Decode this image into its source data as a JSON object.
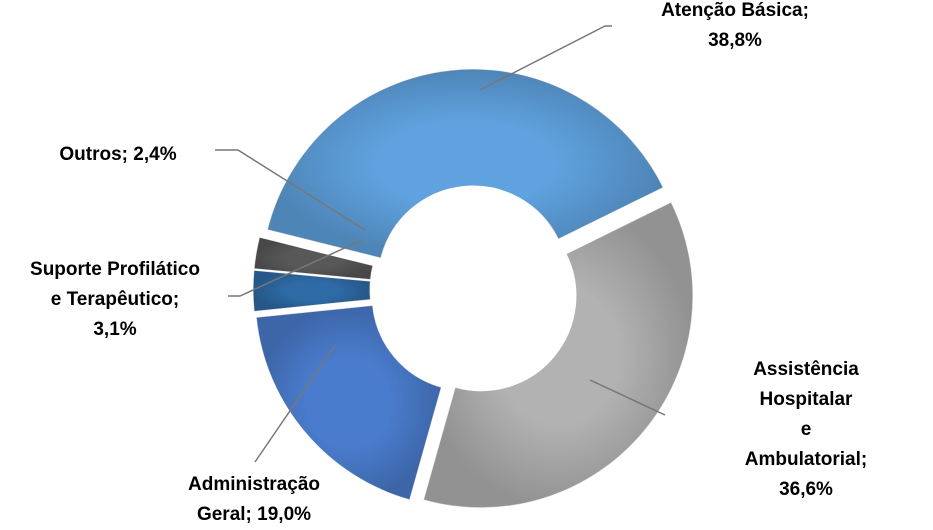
{
  "chart_data": {
    "type": "pie",
    "values": [
      38.8,
      36.6,
      19.0,
      3.1,
      2.4
    ],
    "value_labels": [
      "Atenção Básica; 38,8%",
      "Assistência Hospitalar\ne Ambulatorial; 36,6%",
      "Administração\nGeral; 19,0%",
      "Suporte Profilático\ne Terapêutico;\n3,1%",
      "Outros; 2,4%"
    ],
    "colors": [
      "#5fa2df",
      "#b2b2b2",
      "#4a7ccd",
      "#2e6aa6",
      "#585858"
    ],
    "donut": true
  }
}
